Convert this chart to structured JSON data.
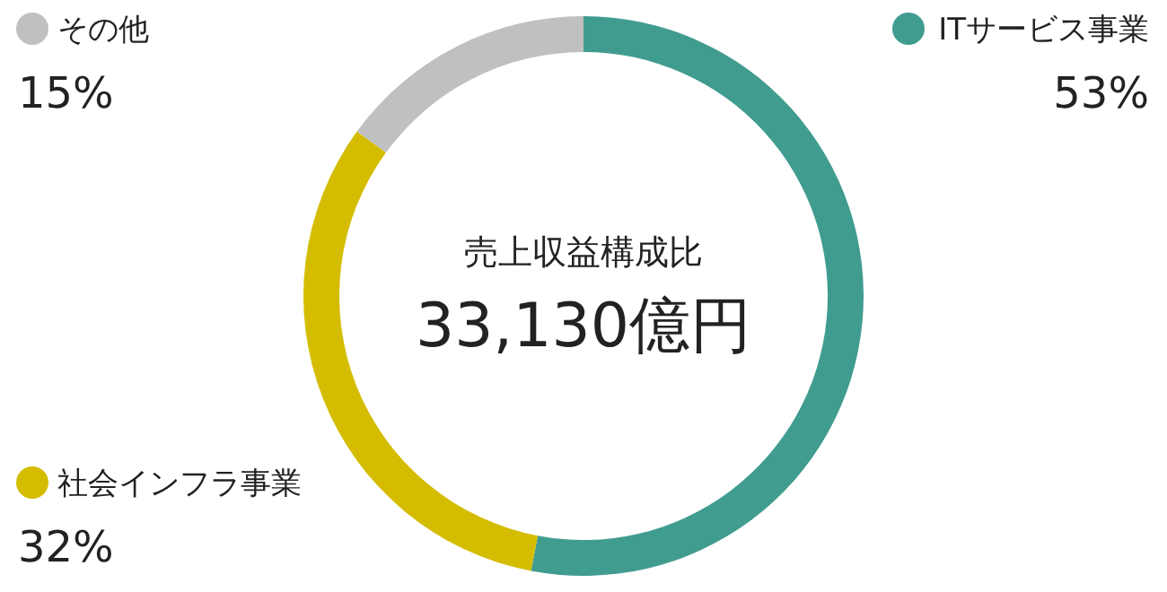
{
  "chart_data": {
    "type": "donut",
    "title": "売上収益構成比",
    "annotations": [
      "33,130億円"
    ],
    "categories": [
      "ITサービス事業",
      "社会インフラ事業",
      "その他"
    ],
    "values": [
      53,
      32,
      15
    ],
    "colors": [
      "#419c90",
      "#d4bd00",
      "#c0c0c0"
    ],
    "value_labels": [
      "53%",
      "32%",
      "15%"
    ],
    "legend": "top left"
  }
}
